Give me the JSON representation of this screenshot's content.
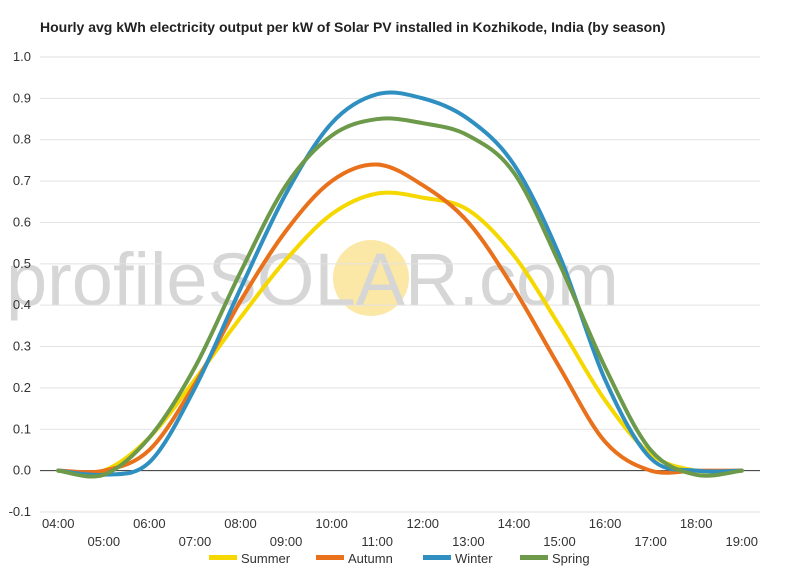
{
  "chart_data": {
    "type": "line",
    "title": "Hourly avg kWh electricity output per kW of Solar PV installed in Kozhikode, India (by season)",
    "xlabel": "",
    "ylabel": "",
    "ylim": [
      -0.1,
      1.0
    ],
    "y_ticks": [
      "-0.1",
      "0.0",
      "0.1",
      "0.2",
      "0.3",
      "0.4",
      "0.5",
      "0.6",
      "0.7",
      "0.8",
      "0.9",
      "1.0"
    ],
    "x_ticks": [
      "04:00",
      "05:00",
      "06:00",
      "07:00",
      "08:00",
      "09:00",
      "10:00",
      "11:00",
      "12:00",
      "13:00",
      "14:00",
      "15:00",
      "16:00",
      "17:00",
      "18:00",
      "19:00"
    ],
    "x_hours": [
      4,
      5,
      6,
      7,
      8,
      9,
      10,
      11,
      12,
      13,
      14,
      15,
      16,
      17,
      18,
      19
    ],
    "grid": true,
    "legend_position": "bottom",
    "series": [
      {
        "name": "Summer",
        "color": "#f5d800",
        "values": [
          0.0,
          0.0,
          0.08,
          0.22,
          0.37,
          0.51,
          0.62,
          0.67,
          0.66,
          0.63,
          0.52,
          0.35,
          0.17,
          0.04,
          0.0,
          0.0
        ]
      },
      {
        "name": "Autumn",
        "color": "#e9711c",
        "values": [
          0.0,
          0.0,
          0.05,
          0.21,
          0.41,
          0.58,
          0.7,
          0.74,
          0.69,
          0.6,
          0.44,
          0.25,
          0.07,
          0.0,
          0.0,
          0.0
        ]
      },
      {
        "name": "Winter",
        "color": "#2f8fc1",
        "values": [
          0.0,
          -0.01,
          0.02,
          0.2,
          0.44,
          0.67,
          0.84,
          0.91,
          0.9,
          0.85,
          0.74,
          0.52,
          0.22,
          0.03,
          0.0,
          0.0
        ]
      },
      {
        "name": "Spring",
        "color": "#6c9a4a",
        "values": [
          0.0,
          -0.01,
          0.08,
          0.25,
          0.48,
          0.69,
          0.81,
          0.85,
          0.84,
          0.81,
          0.72,
          0.5,
          0.25,
          0.05,
          -0.01,
          0.0
        ]
      }
    ]
  },
  "watermark": {
    "part1": "profile",
    "part2": "SOLAR",
    "part3": ".com",
    "sun_color": "#fbe7a6"
  }
}
